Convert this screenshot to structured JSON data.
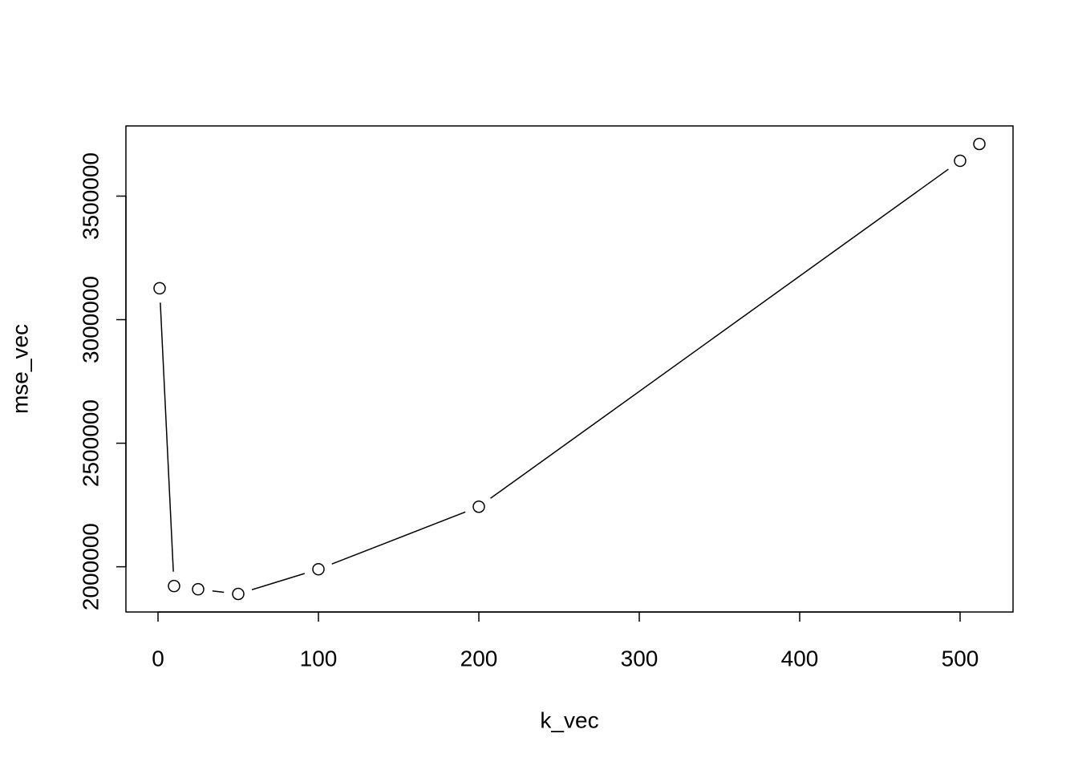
{
  "chart_data": {
    "type": "line",
    "x_label": "k_vec",
    "y_label": "mse_vec",
    "x": [
      1,
      10,
      25,
      50,
      100,
      200,
      500,
      512
    ],
    "series": [
      {
        "name": "mse_vec",
        "color": "#000000",
        "values": [
          3127000,
          1922000,
          1909000,
          1890000,
          1990000,
          2243000,
          3643000,
          3711000
        ]
      }
    ],
    "xlim": [
      -20,
      533
    ],
    "ylim": [
      1817000,
      3784000
    ],
    "xticks": [
      0,
      100,
      200,
      300,
      400,
      500
    ],
    "yticks": [
      2000000,
      2500000,
      3000000,
      3500000
    ],
    "marker": "open-circle",
    "grid": false
  }
}
